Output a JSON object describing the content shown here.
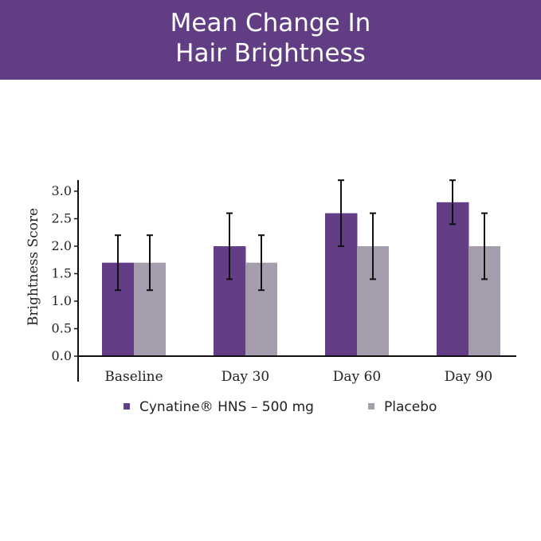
{
  "header": {
    "title_line1": "Mean Change In",
    "title_line2": "Hair Brightness"
  },
  "chart_data": {
    "type": "bar",
    "title": "Mean Change In Hair Brightness",
    "ylabel": "Brightness Score",
    "xlabel": "",
    "ylim": [
      0,
      3.0
    ],
    "yticks": [
      "0.0",
      "0.5",
      "1.0",
      "1.5",
      "2.0",
      "2.5",
      "3.0"
    ],
    "categories": [
      "Baseline",
      "Day 30",
      "Day 60",
      "Day 90"
    ],
    "series": [
      {
        "name": "Cynatine® HNS – 500 mg",
        "color": "#633d86",
        "values": [
          1.7,
          2.0,
          2.6,
          2.8
        ],
        "error_low": [
          1.2,
          1.4,
          2.0,
          2.4
        ],
        "error_high": [
          2.2,
          2.6,
          3.2,
          3.2
        ]
      },
      {
        "name": "Placebo",
        "color": "#a59dad",
        "values": [
          1.7,
          1.7,
          2.0,
          2.0
        ],
        "error_low": [
          1.2,
          1.2,
          1.4,
          1.4
        ],
        "error_high": [
          2.2,
          2.2,
          2.6,
          2.6
        ]
      }
    ],
    "grid": false,
    "legend": "bottom"
  }
}
